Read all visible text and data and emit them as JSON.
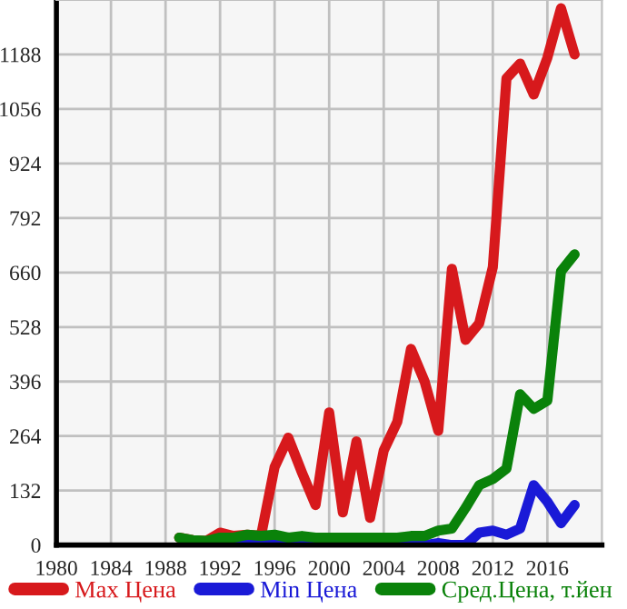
{
  "chart_data": {
    "type": "line",
    "legend": "bottom",
    "grid": true,
    "line_style": "solid",
    "marker": "none",
    "xlim": [
      1980,
      2020
    ],
    "xticks": [
      1980,
      1984,
      1988,
      1992,
      1996,
      2000,
      2004,
      2008,
      2012,
      2016
    ],
    "ylim": [
      0,
      1320
    ],
    "yticks": [
      0,
      132,
      264,
      396,
      528,
      660,
      792,
      924,
      1056,
      1188
    ],
    "x": [
      1989,
      1990,
      1991,
      1992,
      1993,
      1994,
      1995,
      1996,
      1997,
      1998,
      1999,
      2000,
      2001,
      2002,
      2003,
      2004,
      2005,
      2006,
      2007,
      2008,
      2009,
      2010,
      2011,
      2012,
      2013,
      2014,
      2015,
      2016,
      2017,
      2018
    ],
    "series": [
      {
        "name": "Max Цена",
        "color": "#d7191c",
        "values": [
          18,
          12,
          10,
          30,
          22,
          25,
          22,
          189,
          260,
          176,
          97,
          321,
          79,
          251,
          66,
          229,
          299,
          475,
          396,
          277,
          669,
          497,
          537,
          673,
          1130,
          1166,
          1091,
          1180,
          1300,
          1188
        ]
      },
      {
        "name": "Min Цена",
        "color": "#1a1ad7",
        "values": [
          null,
          null,
          0,
          5,
          10,
          18,
          0,
          8,
          0,
          5,
          0,
          0,
          0,
          0,
          0,
          0,
          0,
          0,
          0,
          5,
          0,
          0,
          30,
          35,
          25,
          40,
          145,
          105,
          53,
          97
        ]
      },
      {
        "name": "Сред.Цена, т.йен",
        "color": "#0a820a",
        "values": [
          18,
          12,
          10,
          18,
          18,
          25,
          22,
          25,
          18,
          22,
          18,
          18,
          18,
          18,
          18,
          18,
          18,
          22,
          22,
          35,
          40,
          90,
          145,
          160,
          185,
          365,
          330,
          350,
          663,
          704
        ]
      }
    ]
  }
}
